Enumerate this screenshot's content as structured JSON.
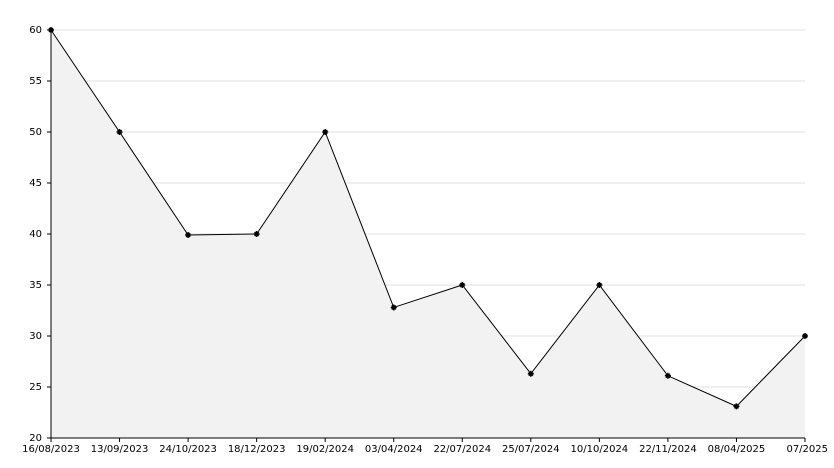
{
  "chart_data": {
    "type": "area",
    "categories": [
      "16/08/2023",
      "13/09/2023",
      "24/10/2023",
      "18/12/2023",
      "19/02/2024",
      "03/04/2024",
      "22/07/2024",
      "25/07/2024",
      "10/10/2024",
      "22/11/2024",
      "08/04/2025",
      "07/2025"
    ],
    "values": [
      60,
      50,
      39.9,
      40,
      50,
      32.8,
      35,
      26.3,
      35,
      26.1,
      23.1,
      30
    ],
    "color": "#000000",
    "fill": "#f2f2f2",
    "ylim": [
      20,
      60
    ],
    "yticks": [
      20,
      25,
      30,
      35,
      40,
      45,
      50,
      55,
      60
    ],
    "grid": true
  }
}
